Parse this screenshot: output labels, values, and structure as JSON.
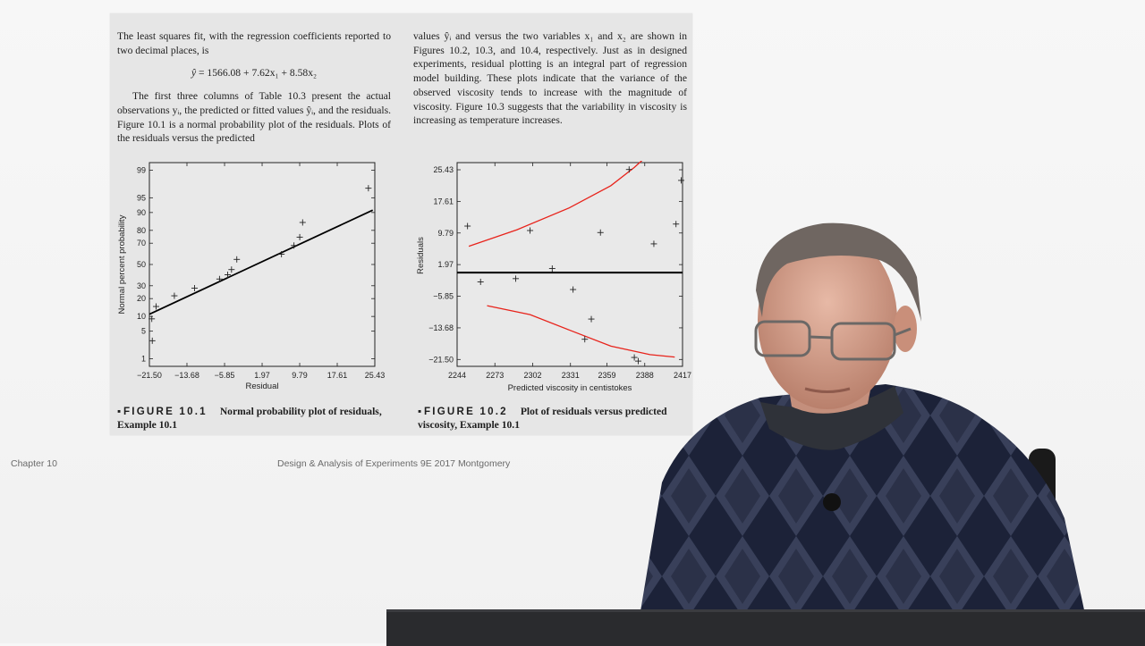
{
  "left_text": {
    "para1": "The least squares fit, with the regression coefficients reported to two decimal places, is",
    "equation_lhs": "ŷ",
    "equation_rhs": " = 1566.08 + 7.62x₁ + 8.58x₂",
    "para2": "The first three columns of Table 10.3 present the actual observations yᵢ, the predicted or fitted values ŷᵢ, and the residuals. Figure 10.1 is a normal probability plot of the residuals. Plots of the residuals versus the predicted"
  },
  "right_text": {
    "para1": "values ŷᵢ and versus the two variables x₁ and x₂ are shown in Figures 10.2, 10.3, and 10.4, respectively. Just as in designed experiments, residual plotting is an integral part of regression model building. These plots indicate that the variance of the observed viscosity tends to increase with the magnitude of viscosity. Figure 10.3 suggests that the variability in viscosity is increasing as temperature increases."
  },
  "figure1": {
    "label": "FIGURE 10.1",
    "caption": "Normal probability plot of residuals, Example 10.1"
  },
  "figure2": {
    "label": "FIGURE 10.2",
    "caption": "Plot of residuals versus predicted viscosity, Example 10.1"
  },
  "footer": {
    "chapter": "Chapter 10",
    "source": "Design & Analysis of Experiments 9E 2017 Montgomery"
  },
  "chart_data": [
    {
      "type": "scatter",
      "xlabel": "Residual",
      "ylabel": "Normal percent probability",
      "x_ticks": [
        "−21.50",
        "−13.68",
        "−5.85",
        "1.97",
        "9.79",
        "17.61",
        "25.43"
      ],
      "y_ticks": [
        "99",
        "95",
        "90",
        "80",
        "70",
        "50",
        "30",
        "20",
        "10",
        "5",
        "1"
      ],
      "xlim": [
        -21.5,
        25.43
      ],
      "points": [
        {
          "x": -20.9,
          "y": 3
        },
        {
          "x": -21.0,
          "y": 9
        },
        {
          "x": -20.1,
          "y": 15
        },
        {
          "x": -16.3,
          "y": 22
        },
        {
          "x": -12.1,
          "y": 28
        },
        {
          "x": -6.9,
          "y": 36
        },
        {
          "x": -5.2,
          "y": 40
        },
        {
          "x": -4.4,
          "y": 45
        },
        {
          "x": -3.3,
          "y": 55
        },
        {
          "x": 6.0,
          "y": 60
        },
        {
          "x": 8.6,
          "y": 68
        },
        {
          "x": 9.8,
          "y": 75
        },
        {
          "x": 10.4,
          "y": 85
        },
        {
          "x": 24.1,
          "y": 97
        }
      ],
      "fit_line": [
        {
          "x": -21.5,
          "y": 11
        },
        {
          "x": 25.0,
          "y": 91
        }
      ]
    },
    {
      "type": "scatter",
      "xlabel": "Predicted viscosity in centistokes",
      "ylabel": "Residuals",
      "x_ticks": [
        "2244",
        "2273",
        "2302",
        "2331",
        "2359",
        "2388",
        "2417"
      ],
      "y_ticks": [
        "25.43",
        "17.61",
        "9.79",
        "1.97",
        "−5.85",
        "−13.68",
        "−21.50"
      ],
      "xlim": [
        2244,
        2417
      ],
      "ylim": [
        -21.5,
        25.43
      ],
      "points": [
        {
          "x": 2252,
          "y": 11.5
        },
        {
          "x": 2262,
          "y": -2.3
        },
        {
          "x": 2300,
          "y": 10.4
        },
        {
          "x": 2289,
          "y": -1.5
        },
        {
          "x": 2317,
          "y": 1.0
        },
        {
          "x": 2333,
          "y": -4.2
        },
        {
          "x": 2342,
          "y": -16.5
        },
        {
          "x": 2347,
          "y": -11.5
        },
        {
          "x": 2354,
          "y": 9.9
        },
        {
          "x": 2376,
          "y": 25.5
        },
        {
          "x": 2380,
          "y": -21.0
        },
        {
          "x": 2383,
          "y": -21.9
        },
        {
          "x": 2395,
          "y": 7.1
        },
        {
          "x": 2412,
          "y": 12.0
        },
        {
          "x": 2416,
          "y": 22.8
        }
      ],
      "zero_line": 0,
      "upper_band": [
        {
          "x": 2253,
          "y": 6.5
        },
        {
          "x": 2290,
          "y": 10.6
        },
        {
          "x": 2330,
          "y": 16.0
        },
        {
          "x": 2362,
          "y": 21.5
        },
        {
          "x": 2380,
          "y": 26.0
        },
        {
          "x": 2393,
          "y": 29.8
        }
      ],
      "lower_band": [
        {
          "x": 2267,
          "y": -8.2
        },
        {
          "x": 2300,
          "y": -10.4
        },
        {
          "x": 2330,
          "y": -14.2
        },
        {
          "x": 2362,
          "y": -18.2
        },
        {
          "x": 2392,
          "y": -20.3
        },
        {
          "x": 2411,
          "y": -20.9
        }
      ]
    }
  ]
}
